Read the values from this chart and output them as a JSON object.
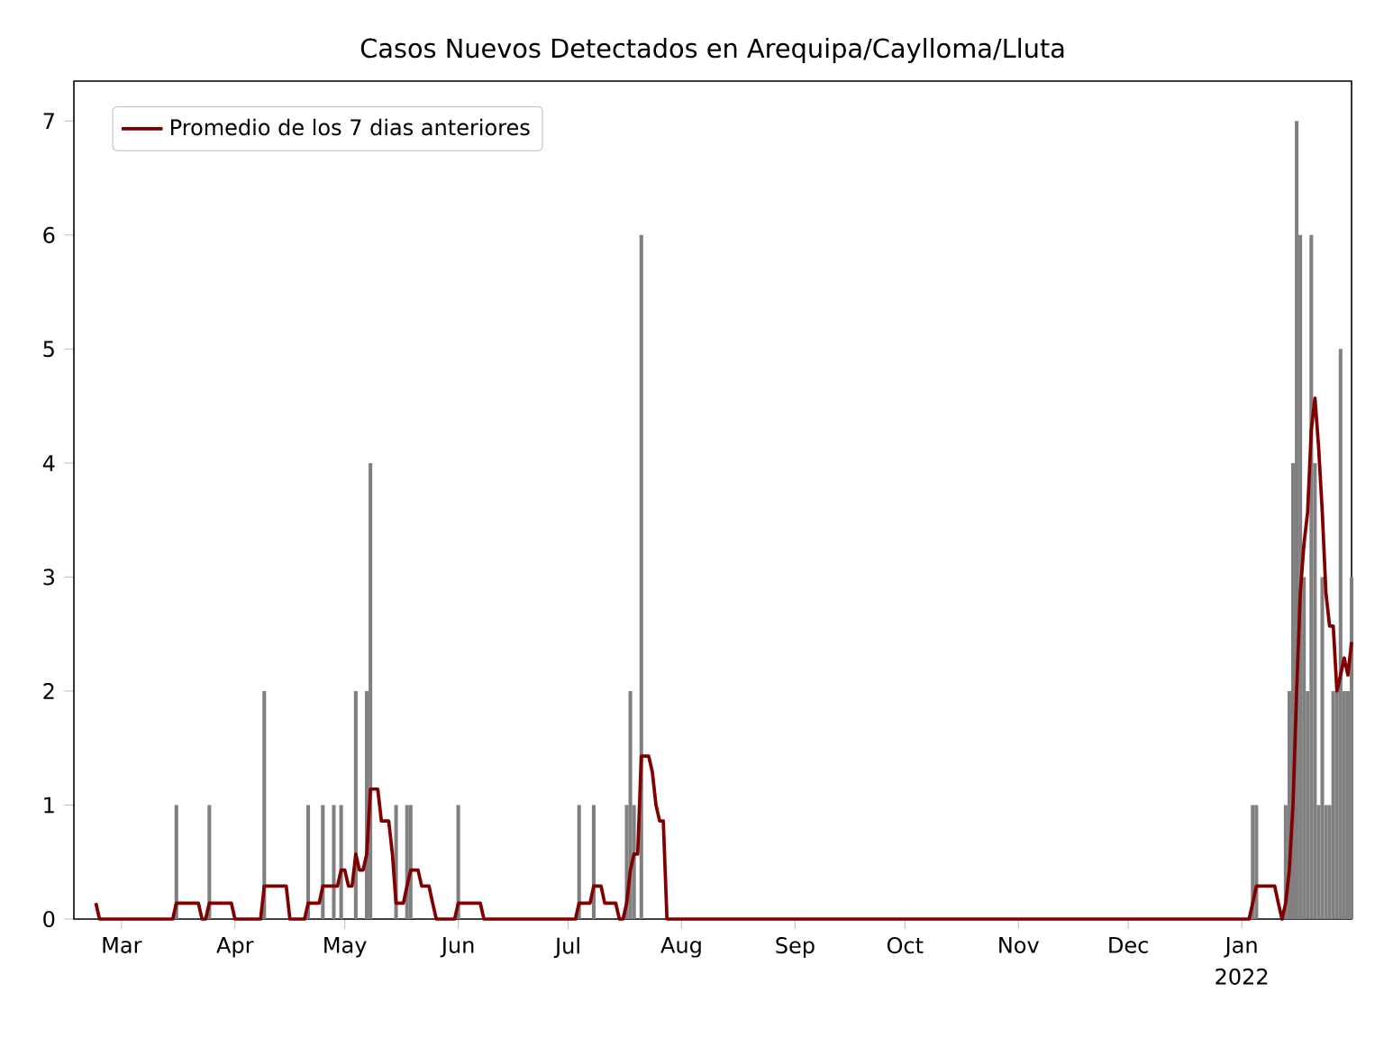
{
  "chart_data": {
    "type": "bar",
    "title": "Casos Nuevos Detectados en Arequipa/Caylloma/Lluta",
    "series": [
      {
        "color": "#808080",
        "x": [
          "2021-03-16",
          "2021-03-25",
          "2021-04-09",
          "2021-04-21",
          "2021-04-25",
          "2021-04-28",
          "2021-04-30",
          "2021-05-04",
          "2021-05-07",
          "2021-05-08",
          "2021-05-15",
          "2021-05-18",
          "2021-05-19",
          "2021-06-01",
          "2021-07-04",
          "2021-07-08",
          "2021-07-17",
          "2021-07-18",
          "2021-07-19",
          "2021-07-21",
          "2022-01-04",
          "2022-01-05",
          "2022-01-13",
          "2022-01-14",
          "2022-01-15",
          "2022-01-16",
          "2022-01-17",
          "2022-01-18",
          "2022-01-19",
          "2022-01-20",
          "2022-01-21",
          "2022-01-22",
          "2022-01-23",
          "2022-01-24",
          "2022-01-25",
          "2022-01-26",
          "2022-01-27",
          "2022-01-28",
          "2022-01-29",
          "2022-01-30",
          "2022-01-31"
        ],
        "values": [
          1,
          1,
          2,
          1,
          1,
          1,
          1,
          2,
          2,
          4,
          1,
          1,
          1,
          1,
          1,
          1,
          1,
          2,
          1,
          6,
          1,
          1,
          1,
          2,
          4,
          7,
          6,
          3,
          2,
          6,
          4,
          1,
          3,
          1,
          1,
          2,
          2,
          5,
          2,
          2,
          3
        ]
      },
      {
        "type": "line",
        "name": "Promedio de los 7 dias anteriores",
        "color": "#800000",
        "x": [
          "2021-02-22",
          "2021-02-23",
          "2021-03-15",
          "2021-03-16",
          "2021-03-22",
          "2021-03-23",
          "2021-03-24",
          "2021-03-25",
          "2021-03-31",
          "2021-04-01",
          "2021-04-08",
          "2021-04-09",
          "2021-04-15",
          "2021-04-16",
          "2021-04-20",
          "2021-04-21",
          "2021-04-24",
          "2021-04-25",
          "2021-04-29",
          "2021-04-30",
          "2021-05-01",
          "2021-05-02",
          "2021-05-03",
          "2021-05-04",
          "2021-05-05",
          "2021-05-06",
          "2021-05-07",
          "2021-05-08",
          "2021-05-10",
          "2021-05-11",
          "2021-05-13",
          "2021-05-14",
          "2021-05-15",
          "2021-05-17",
          "2021-05-18",
          "2021-05-19",
          "2021-05-21",
          "2021-05-22",
          "2021-05-24",
          "2021-05-25",
          "2021-05-26",
          "2021-05-31",
          "2021-06-01",
          "2021-06-07",
          "2021-06-08",
          "2021-07-03",
          "2021-07-04",
          "2021-07-07",
          "2021-07-08",
          "2021-07-10",
          "2021-07-11",
          "2021-07-14",
          "2021-07-15",
          "2021-07-16",
          "2021-07-17",
          "2021-07-18",
          "2021-07-19",
          "2021-07-20",
          "2021-07-21",
          "2021-07-23",
          "2021-07-24",
          "2021-07-25",
          "2021-07-26",
          "2021-07-27",
          "2021-07-28",
          "2022-01-03",
          "2022-01-04",
          "2022-01-05",
          "2022-01-10",
          "2022-01-11",
          "2022-01-12",
          "2022-01-13",
          "2022-01-14",
          "2022-01-15",
          "2022-01-16",
          "2022-01-17",
          "2022-01-18",
          "2022-01-19",
          "2022-01-20",
          "2022-01-21",
          "2022-01-22",
          "2022-01-23",
          "2022-01-24",
          "2022-01-25",
          "2022-01-26",
          "2022-01-27",
          "2022-01-28",
          "2022-01-29",
          "2022-01-30",
          "2022-01-31"
        ],
        "values": [
          0.14,
          0,
          0,
          0.14,
          0.14,
          0,
          0,
          0.14,
          0.14,
          0,
          0,
          0.29,
          0.29,
          0,
          0,
          0.14,
          0.14,
          0.29,
          0.29,
          0.43,
          0.43,
          0.29,
          0.29,
          0.57,
          0.43,
          0.43,
          0.57,
          1.14,
          1.14,
          0.86,
          0.86,
          0.57,
          0.14,
          0.14,
          0.29,
          0.43,
          0.43,
          0.29,
          0.29,
          0.14,
          0,
          0,
          0.14,
          0.14,
          0,
          0,
          0.14,
          0.14,
          0.29,
          0.29,
          0.14,
          0.14,
          0,
          0,
          0.14,
          0.43,
          0.57,
          0.57,
          1.43,
          1.43,
          1.29,
          1.0,
          0.86,
          0.86,
          0,
          0,
          0.14,
          0.29,
          0.29,
          0.14,
          0,
          0.14,
          0.43,
          1.0,
          2.0,
          2.86,
          3.29,
          3.57,
          4.29,
          4.57,
          4.14,
          3.57,
          2.86,
          2.57,
          2.57,
          2.0,
          2.14,
          2.29,
          2.14,
          2.43
        ]
      }
    ],
    "xlim": [
      "2021-02-16",
      "2022-01-31"
    ],
    "xticks": [
      {
        "value": "2021-03-01",
        "label": "Mar"
      },
      {
        "value": "2021-04-01",
        "label": "Apr"
      },
      {
        "value": "2021-05-01",
        "label": "May"
      },
      {
        "value": "2021-06-01",
        "label": "Jun"
      },
      {
        "value": "2021-07-01",
        "label": "Jul"
      },
      {
        "value": "2021-08-01",
        "label": "Aug"
      },
      {
        "value": "2021-09-01",
        "label": "Sep"
      },
      {
        "value": "2021-10-01",
        "label": "Oct"
      },
      {
        "value": "2021-11-01",
        "label": "Nov"
      },
      {
        "value": "2021-12-01",
        "label": "Dec"
      },
      {
        "value": "2022-01-01",
        "label": "Jan"
      }
    ],
    "ylim": [
      0,
      7.35
    ],
    "yticks": [
      0,
      1,
      2,
      3,
      4,
      5,
      6,
      7
    ],
    "legend": "top left",
    "annotations": [
      "2022"
    ]
  }
}
